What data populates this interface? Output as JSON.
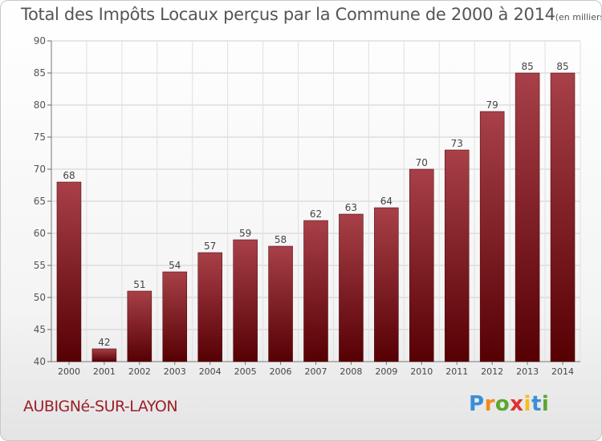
{
  "colors": {
    "bar_light": "#a84048",
    "bar_dark": "#560004",
    "text": "#555555",
    "commune": "#9b1f2a"
  },
  "header": {
    "title": "Total des Impôts Locaux perçus par la Commune de 2000 à 2014",
    "unit": "(en milliers d'€)"
  },
  "footer": {
    "commune": "AUBIGNé-SUR-LAYON",
    "logo_letters": [
      "P",
      "r",
      "o",
      "x",
      "i",
      "t",
      "i"
    ],
    "logo_colors": [
      "#3a8ed8",
      "#f28a1a",
      "#5aa830",
      "#e03030",
      "#f2c01a",
      "#3a8ed8",
      "#5aa830"
    ]
  },
  "chart_data": {
    "type": "bar",
    "title": "Total des Impôts Locaux perçus par la Commune de 2000 à 2014",
    "ylabel": "en milliers d'€",
    "xlabel": "",
    "categories": [
      "2000",
      "2001",
      "2002",
      "2003",
      "2004",
      "2005",
      "2006",
      "2007",
      "2008",
      "2009",
      "2010",
      "2011",
      "2012",
      "2013",
      "2014"
    ],
    "values": [
      68,
      42,
      51,
      54,
      57,
      59,
      58,
      62,
      63,
      64,
      70,
      73,
      79,
      85,
      85
    ],
    "ylim": [
      40,
      90
    ],
    "yticks": [
      "40",
      "45",
      "50",
      "55",
      "60",
      "65",
      "70",
      "75",
      "80",
      "85",
      "90"
    ],
    "grid": true
  }
}
